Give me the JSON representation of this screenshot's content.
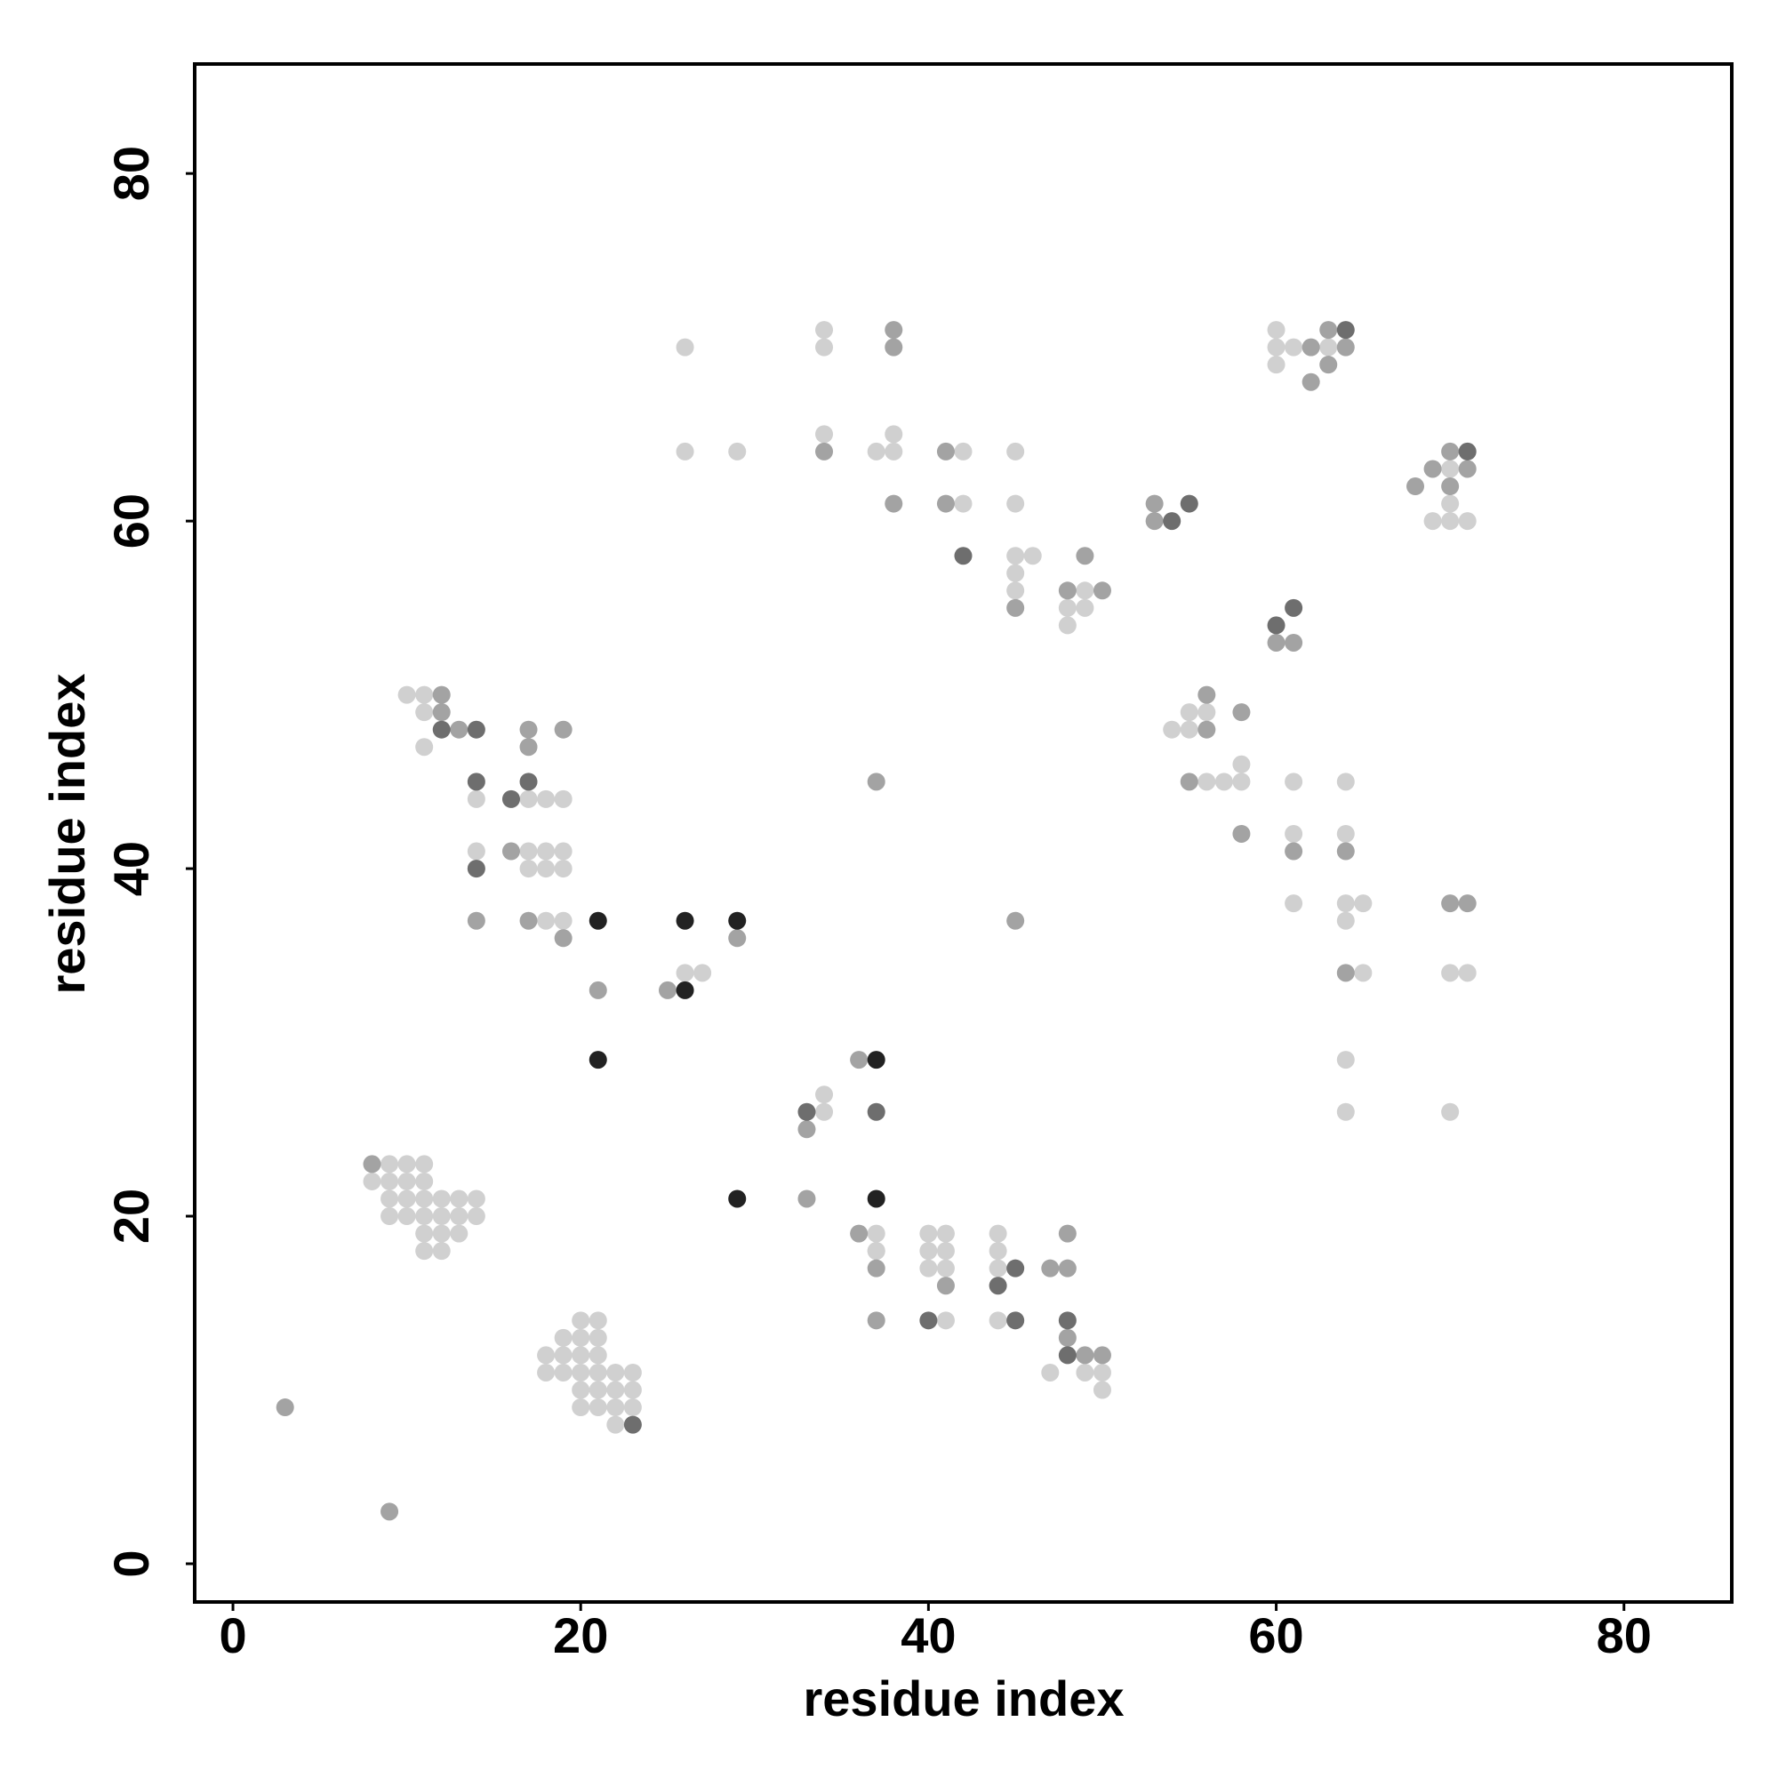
{
  "chart_data": {
    "type": "scatter",
    "xlabel": "residue index",
    "ylabel": "residue index",
    "xlim": [
      -2.2,
      86.2
    ],
    "ylim": [
      -2.2,
      86.3
    ],
    "xticks": [
      0,
      20,
      40,
      60,
      80
    ],
    "yticks": [
      0,
      20,
      40,
      60,
      80
    ],
    "series": [
      {
        "color": "#d0d0d0",
        "x": [
          9,
          10,
          11,
          8,
          9,
          10,
          11,
          9,
          10,
          11,
          12,
          13,
          14,
          9,
          10,
          11,
          12,
          13,
          14,
          11,
          12,
          13,
          11,
          12,
          20,
          21,
          19,
          20,
          21,
          18,
          19,
          20,
          21,
          18,
          19,
          20,
          21,
          22,
          23,
          20,
          21,
          22,
          23,
          20,
          21,
          22,
          23,
          22,
          10,
          11,
          11,
          11,
          14,
          17,
          18,
          19,
          14,
          17,
          18,
          19,
          14,
          17,
          18,
          19,
          18,
          19,
          26,
          27,
          34,
          34,
          37,
          37,
          40,
          41,
          44,
          37,
          40,
          41,
          44,
          40,
          41,
          44,
          41,
          44,
          47,
          49,
          50,
          50,
          34,
          26,
          34,
          34,
          38,
          26,
          29,
          37,
          38,
          42,
          45,
          42,
          45,
          45,
          46,
          45,
          45,
          49,
          48,
          49,
          48,
          60,
          60,
          61,
          63,
          60,
          70,
          70,
          69,
          70,
          71,
          55,
          56,
          54,
          55,
          58,
          56,
          57,
          58,
          61,
          64,
          61,
          64,
          61,
          64,
          65,
          64,
          65,
          70,
          71,
          64,
          64,
          70
        ],
        "y": [
          23,
          23,
          23,
          22,
          22,
          22,
          22,
          21,
          21,
          21,
          21,
          21,
          21,
          20,
          20,
          20,
          20,
          20,
          20,
          19,
          19,
          19,
          18,
          18,
          14,
          14,
          13,
          13,
          13,
          12,
          12,
          12,
          12,
          11,
          11,
          11,
          11,
          11,
          11,
          10,
          10,
          10,
          10,
          9,
          9,
          9,
          9,
          8,
          50,
          50,
          49,
          47,
          44,
          44,
          44,
          44,
          41,
          41,
          41,
          41,
          40,
          40,
          40,
          40,
          37,
          37,
          34,
          34,
          27,
          26,
          19,
          18,
          19,
          19,
          19,
          18,
          18,
          18,
          18,
          17,
          17,
          17,
          14,
          14,
          11,
          11,
          11,
          10,
          71,
          70,
          70,
          65,
          65,
          64,
          64,
          64,
          64,
          64,
          64,
          61,
          61,
          58,
          58,
          57,
          56,
          56,
          55,
          55,
          54,
          71,
          70,
          70,
          70,
          69,
          63,
          61,
          60,
          60,
          60,
          49,
          49,
          48,
          48,
          46,
          45,
          45,
          45,
          45,
          45,
          42,
          42,
          38,
          38,
          38,
          37,
          34,
          34,
          34,
          29,
          26,
          26
        ]
      },
      {
        "color": "#a3a3a3",
        "x": [
          3,
          9,
          8,
          12,
          12,
          13,
          17,
          19,
          17,
          16,
          14,
          17,
          19,
          29,
          21,
          25,
          36,
          33,
          33,
          37,
          36,
          48,
          37,
          47,
          48,
          41,
          37,
          48,
          49,
          50,
          45,
          38,
          38,
          34,
          41,
          38,
          41,
          49,
          48,
          50,
          45,
          53,
          53,
          63,
          62,
          64,
          63,
          62,
          70,
          69,
          71,
          68,
          70,
          60,
          61,
          56,
          58,
          56,
          55,
          58,
          61,
          64,
          70,
          71,
          64
        ],
        "y": [
          9,
          3,
          23,
          50,
          49,
          48,
          48,
          48,
          47,
          41,
          37,
          37,
          36,
          36,
          33,
          33,
          29,
          25,
          21,
          45,
          19,
          19,
          17,
          17,
          17,
          16,
          14,
          13,
          12,
          12,
          37,
          71,
          70,
          64,
          64,
          61,
          61,
          58,
          56,
          56,
          55,
          61,
          60,
          71,
          70,
          70,
          69,
          68,
          64,
          63,
          63,
          62,
          62,
          53,
          53,
          50,
          49,
          48,
          45,
          42,
          41,
          41,
          38,
          38,
          34
        ]
      },
      {
        "color": "#6e6e6e",
        "x": [
          12,
          14,
          14,
          17,
          16,
          14,
          23,
          33,
          37,
          45,
          44,
          40,
          45,
          48,
          48,
          42,
          55,
          54,
          64,
          71,
          61,
          60
        ],
        "y": [
          48,
          48,
          45,
          45,
          44,
          40,
          8,
          26,
          26,
          17,
          16,
          14,
          14,
          14,
          12,
          58,
          61,
          60,
          71,
          64,
          55,
          54
        ]
      },
      {
        "color": "#222222",
        "x": [
          21,
          26,
          29,
          26,
          21,
          29,
          37,
          37
        ],
        "y": [
          37,
          37,
          37,
          33,
          29,
          21,
          29,
          21
        ]
      }
    ]
  }
}
